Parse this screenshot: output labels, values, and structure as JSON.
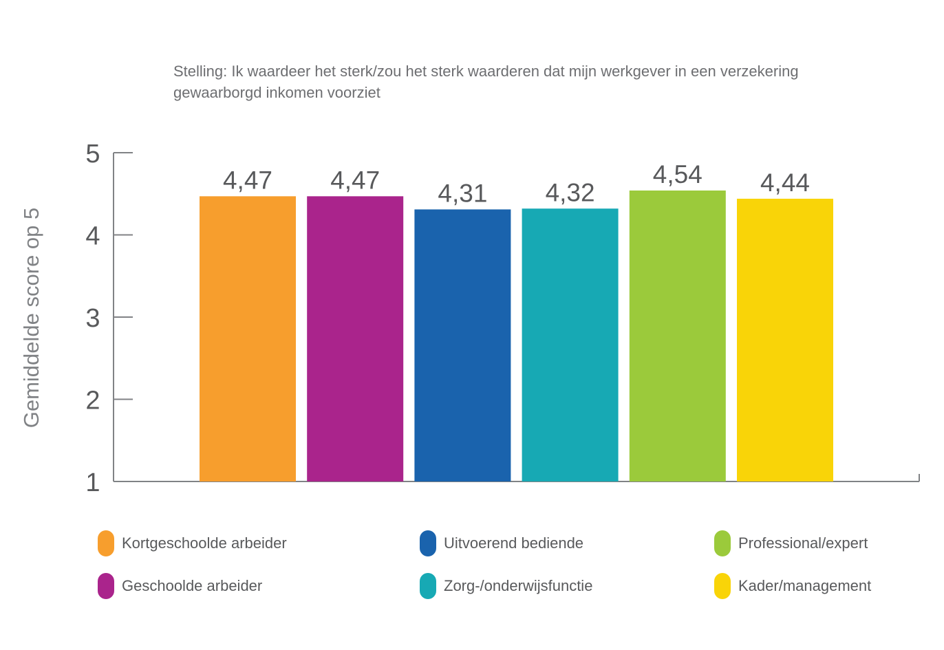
{
  "chart_data": {
    "type": "bar",
    "title_lines": [
      "Stelling: Ik waardeer het sterk/zou het sterk waarderen dat mijn werkgever in een verzekering",
      "gewaarborgd inkomen voorziet"
    ],
    "ylabel": "Gemiddelde score op 5",
    "xlabel": "",
    "ylim": [
      1,
      5
    ],
    "yticks": [
      "1",
      "2",
      "3",
      "4",
      "5"
    ],
    "grid": false,
    "legend_position": "bottom",
    "categories": [
      "Kortgeschoolde arbeider",
      "Geschoolde arbeider",
      "Uitvoerend bediende",
      "Zorg-/onderwijsfunctie",
      "Professional/expert",
      "Kader/management"
    ],
    "values": [
      4.47,
      4.47,
      4.31,
      4.32,
      4.54,
      4.44
    ],
    "value_labels": [
      "4,47",
      "4,47",
      "4,31",
      "4,32",
      "4,54",
      "4,44"
    ],
    "colors": [
      "#f79e2d",
      "#aa248c",
      "#1a63ad",
      "#17a9b4",
      "#9bca3b",
      "#f9d408"
    ]
  }
}
